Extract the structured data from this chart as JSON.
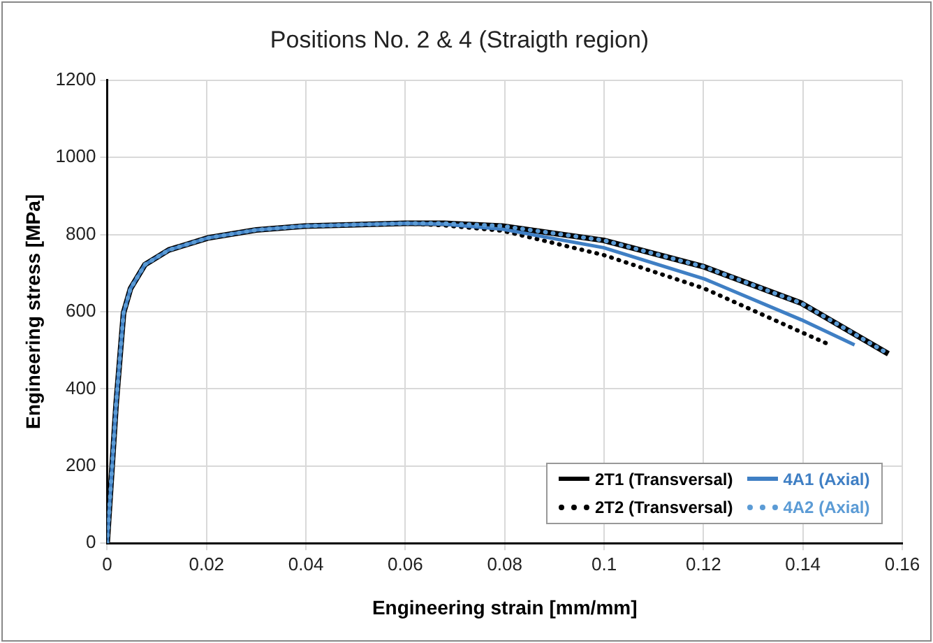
{
  "chart_data": {
    "type": "line",
    "title": "Positions No. 2 & 4 (Straigth region)",
    "xlabel": "Engineering strain [mm/mm]",
    "ylabel": "Engineering stress [MPa]",
    "xlim": [
      0,
      0.16
    ],
    "xticks": [
      0,
      0.02,
      0.04,
      0.06,
      0.08,
      0.1,
      0.12,
      0.14,
      0.16
    ],
    "ylim": [
      0,
      1200
    ],
    "yticks": [
      0,
      200,
      400,
      600,
      800,
      1000,
      1200
    ],
    "grid": true,
    "legend": "bottom right",
    "marker": "none",
    "series": [
      {
        "name": "2T1 (Transversal)",
        "color": "#000000",
        "line_style": "solid",
        "x": [
          0,
          0.0018,
          0.0033,
          0.0047,
          0.0076,
          0.0124,
          0.0202,
          0.03,
          0.0397,
          0.06,
          0.0678,
          0.0795,
          0.0999,
          0.1202,
          0.1397,
          0.1572
        ],
        "values": [
          0,
          360,
          597,
          660,
          722,
          760,
          791,
          812,
          822,
          829,
          829,
          822,
          785,
          716,
          622,
          491
        ]
      },
      {
        "name": "4A1 (Axial)",
        "color": "#3f7fc4",
        "line_style": "solid",
        "x": [
          0,
          0.0018,
          0.0033,
          0.0047,
          0.0076,
          0.0124,
          0.0202,
          0.03,
          0.0397,
          0.06,
          0.0678,
          0.0795,
          0.0999,
          0.1202,
          0.1397,
          0.1504
        ],
        "values": [
          0,
          360,
          597,
          660,
          722,
          760,
          791,
          812,
          822,
          829,
          827,
          814,
          766,
          685,
          579,
          514
        ]
      },
      {
        "name": "2T2 (Transversal)",
        "color": "#000000",
        "line_style": "dotted",
        "x": [
          0,
          0.0018,
          0.0033,
          0.0047,
          0.0076,
          0.0124,
          0.0202,
          0.03,
          0.0397,
          0.06,
          0.0678,
          0.0795,
          0.0999,
          0.1202,
          0.1397,
          0.1451
        ],
        "values": [
          0,
          360,
          597,
          660,
          722,
          760,
          791,
          812,
          822,
          829,
          824,
          810,
          747,
          660,
          547,
          516
        ]
      },
      {
        "name": "4A2 (Axial)",
        "color": "#5b9bd5",
        "line_style": "dotted",
        "x": [
          0,
          0.0018,
          0.0033,
          0.0047,
          0.0076,
          0.0124,
          0.0202,
          0.03,
          0.0397,
          0.06,
          0.0678,
          0.0795,
          0.0999,
          0.1202,
          0.1397,
          0.1572
        ],
        "values": [
          0,
          360,
          597,
          660,
          722,
          760,
          791,
          812,
          822,
          829,
          829,
          822,
          785,
          716,
          622,
          491
        ]
      }
    ]
  }
}
